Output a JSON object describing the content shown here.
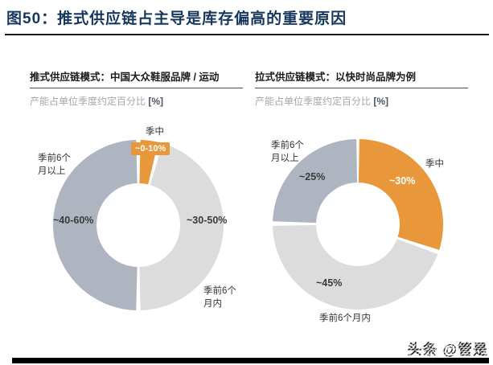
{
  "figure": {
    "title": "图50：推式供应链占主导是库存偏高的重要原因"
  },
  "footer": {
    "watermark": "头条 @管是"
  },
  "chart_data": [
    {
      "type": "pie",
      "donut": true,
      "title": "推式供应链模式：中国大众鞋服品牌 / 运动",
      "subtitle": "产能占单位季度约定百分比",
      "subtitle_unit": "[%]",
      "legend_position": "none",
      "geometry": {
        "size": 220,
        "outer_radius": 106,
        "inner_radius": 52
      },
      "slices": [
        {
          "id": "mid-season",
          "name": "季中",
          "value_label": "~0-10%",
          "approx_pct": 5,
          "color": "#E8973B",
          "start_angle": 1.5,
          "end_angle": 13.5
        },
        {
          "id": "pre-season-within-6m",
          "name": "季前6个月内",
          "value_label": "~30-50%",
          "approx_pct": 40,
          "color": "#DCDCDC",
          "start_angle": 16.5,
          "end_angle": 178.5
        },
        {
          "id": "pre-season-6m-plus",
          "name": "季前6个月以上",
          "value_label": "~40-60%",
          "approx_pct": 55,
          "color": "#AEB5C0",
          "start_angle": 181.5,
          "end_angle": 358.5
        }
      ]
    },
    {
      "type": "pie",
      "donut": true,
      "title": "拉式供应链模式：以快时尚品牌为例",
      "subtitle": "产能占单位季度约定百分比",
      "subtitle_unit": "[%]",
      "legend_position": "none",
      "geometry": {
        "size": 220,
        "outer_radius": 106,
        "inner_radius": 52
      },
      "slices": [
        {
          "id": "mid-season",
          "name": "季中",
          "value_label": "~30%",
          "approx_pct": 30,
          "color": "#E8973B",
          "start_angle": 1,
          "end_angle": 107.5
        },
        {
          "id": "pre-season-within-6m",
          "name": "季前6个月内",
          "value_label": "~45%",
          "approx_pct": 45,
          "color": "#DCDCDC",
          "start_angle": 110.5,
          "end_angle": 269
        },
        {
          "id": "pre-season-6m-plus",
          "name": "季前6个月以上",
          "value_label": "~25%",
          "approx_pct": 25,
          "color": "#AEB5C0",
          "start_angle": 272,
          "end_angle": 359
        }
      ]
    }
  ]
}
